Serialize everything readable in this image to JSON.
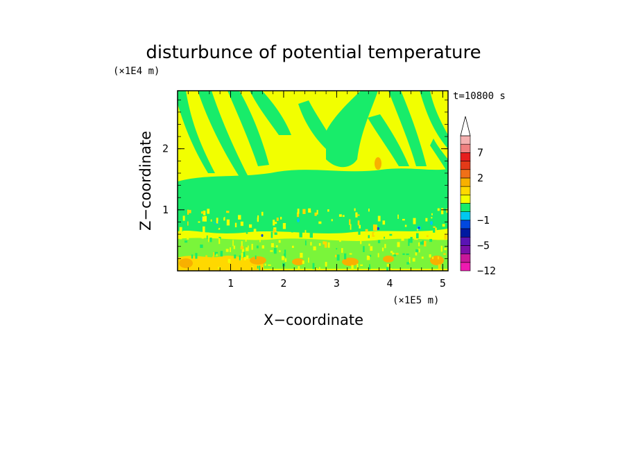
{
  "chart_data": {
    "type": "heatmap",
    "title": "disturbunce of potential temperature",
    "xlabel": "X−coordinate",
    "ylabel": "Z−coordinate",
    "x_multiplier": "(×1E5 m)",
    "y_multiplier": "(×1E4 m)",
    "time_label": "t=10800 s",
    "xlim": [
      0,
      5.1
    ],
    "ylim": [
      0,
      2.95
    ],
    "x_ticks": [
      "1",
      "2",
      "3",
      "4",
      "5"
    ],
    "y_ticks": [
      "1",
      "2"
    ],
    "colorbar": {
      "levels": [
        -12,
        -9,
        -7,
        -5,
        -3,
        -2,
        -1,
        -0.5,
        0,
        0.5,
        1,
        2,
        3,
        5,
        7,
        9,
        12
      ],
      "colors": [
        "#ee1ab0",
        "#c8189a",
        "#7a0fa8",
        "#5a14b4",
        "#001aa0",
        "#0048e0",
        "#00c8f0",
        "#18ec6a",
        "#f2ff00",
        "#ffd800",
        "#f8b000",
        "#f07018",
        "#e43a18",
        "#e61e1e",
        "#f08080",
        "#f4b0b0"
      ],
      "tick_labels": [
        "7",
        "2",
        "−1",
        "−5",
        "−12"
      ],
      "extend": "max"
    },
    "dominant_values": {
      "green_band_value_range": [
        -0.5,
        0
      ],
      "yellow_value_range": [
        0,
        0.5
      ],
      "orange_spots_value_range": [
        0.5,
        1
      ],
      "cyan_spots_value_range": [
        -1,
        -0.5
      ],
      "blue_spots_value_range": [
        -3,
        -2
      ]
    }
  }
}
